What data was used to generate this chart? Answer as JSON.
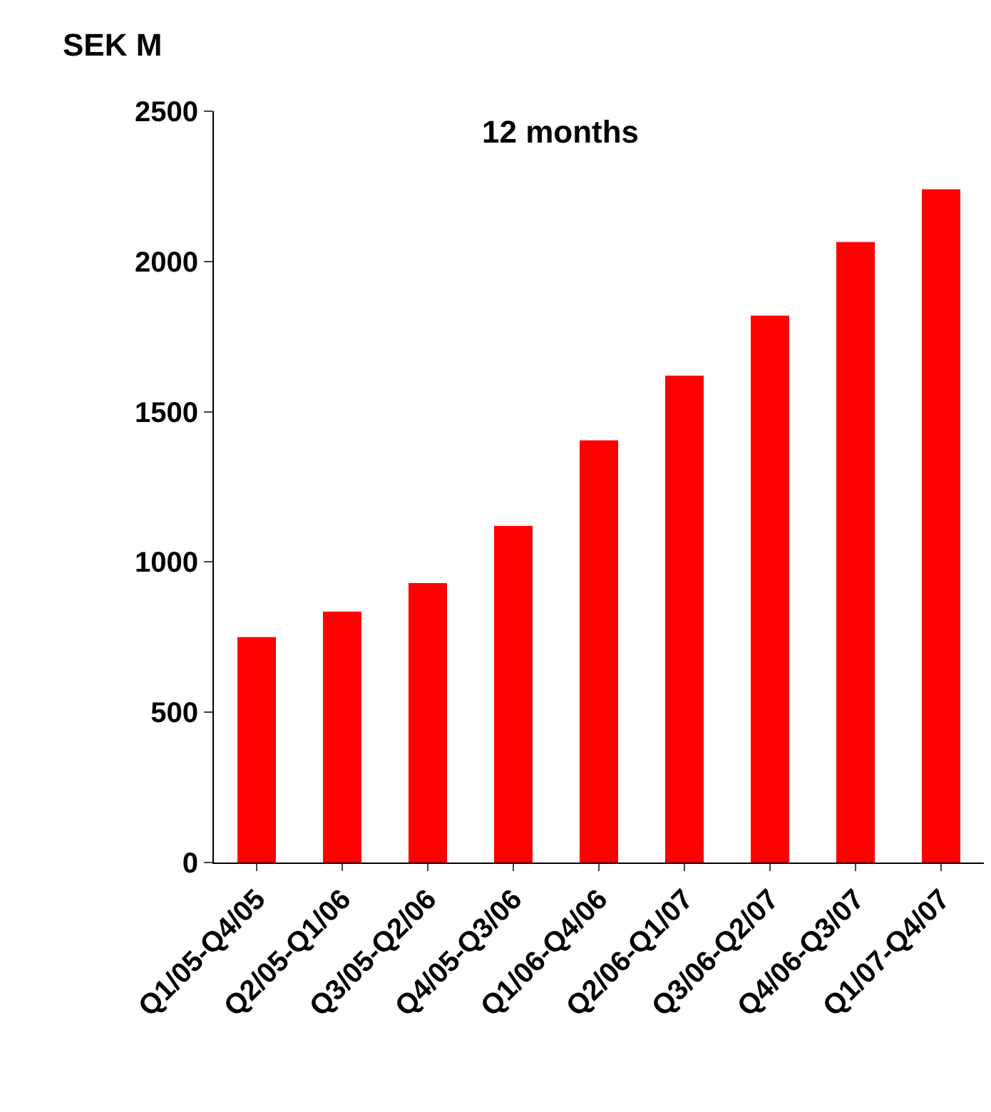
{
  "chart_data": {
    "type": "bar",
    "title": "12 months",
    "ylabel": "SEK M",
    "categories": [
      "Q1/05-Q4/05",
      "Q2/05-Q1/06",
      "Q3/05-Q2/06",
      "Q4/05-Q3/06",
      "Q1/06-Q4/06",
      "Q2/06-Q1/07",
      "Q3/06-Q2/07",
      "Q4/06-Q3/07",
      "Q1/07-Q4/07"
    ],
    "values": [
      750,
      835,
      930,
      1120,
      1405,
      1620,
      1820,
      2065,
      2240
    ],
    "color": "#ff0000",
    "ylim": [
      0,
      2500
    ],
    "yticks": [
      0,
      500,
      1000,
      1500,
      2000,
      2500
    ]
  }
}
